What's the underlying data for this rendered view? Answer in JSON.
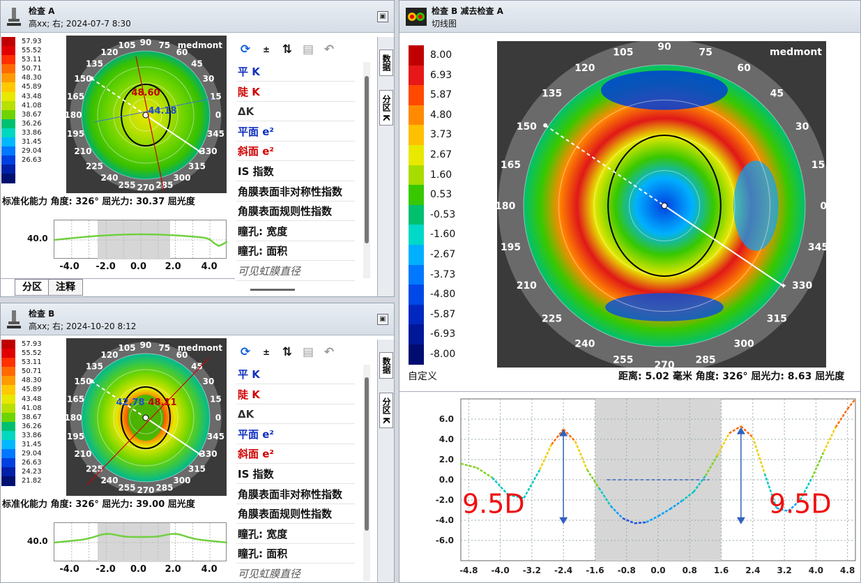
{
  "exam_a": {
    "title": "检查 A",
    "subtitle": "高xx; 右; 2024-07-7 8:30",
    "scale": [
      "57.93",
      "55.52",
      "53.11",
      "50.71",
      "48.30",
      "45.89",
      "43.48",
      "41.08",
      "38.67",
      "36.26",
      "33.86",
      "31.45",
      "29.04",
      "26.63",
      "",
      ""
    ],
    "scale_colors": [
      "#c00000",
      "#e00000",
      "#ff3000",
      "#ff6a00",
      "#ff9a00",
      "#ffc800",
      "#e8e800",
      "#b8e000",
      "#6ed400",
      "#00c070",
      "#00d8c0",
      "#00b8ff",
      "#0078ff",
      "#0040e0",
      "#0020a8",
      "#001070"
    ],
    "status": "标准化能力 角度: 326° 屈光力: 30.37 屈光度",
    "k1": "48.60",
    "k2": "44.18",
    "profile_label": "40.0",
    "profile_ticks": [
      "-4.0",
      "-2.0",
      "0.0",
      "2.0",
      "4.0"
    ],
    "bottom_tabs": [
      "分区",
      "注释"
    ],
    "vtabs": [
      "数据",
      "分区 K"
    ]
  },
  "exam_b": {
    "title": "检查 B",
    "subtitle": "高xx; 右; 2024-10-20 8:12",
    "scale": [
      "57.93",
      "55.52",
      "53.11",
      "50.71",
      "48.30",
      "45.89",
      "43.48",
      "41.08",
      "38.67",
      "36.26",
      "33.86",
      "31.45",
      "29.04",
      "26.63",
      "24.23",
      "21.82"
    ],
    "status": "标准化能力 角度: 326° 屈光力: 39.00 屈光度",
    "k1": "42.78",
    "k2": "48.11",
    "profile_label": "40.0",
    "profile_ticks": [
      "-4.0",
      "-2.0",
      "0.0",
      "2.0",
      "4.0"
    ],
    "vtabs": [
      "数据",
      "分区 K"
    ]
  },
  "angles": [
    "90",
    "105",
    "120",
    "135",
    "150",
    "165",
    "180",
    "195",
    "210",
    "225",
    "240",
    "255",
    "270",
    "285",
    "300",
    "315",
    "330",
    "345",
    "0",
    "15",
    "30",
    "45",
    "60",
    "75"
  ],
  "side_items": [
    {
      "label": "平 K",
      "color": "#1030c0"
    },
    {
      "label": "陡 K",
      "color": "#d00000"
    },
    {
      "label": "ΔK",
      "color": "#333333"
    },
    {
      "label": "平面 e²",
      "color": "#1030c0"
    },
    {
      "label": "斜面 e²",
      "color": "#d00000"
    },
    {
      "label": "IS 指数",
      "color": "#111111"
    },
    {
      "label": "角膜表面非对称性指数",
      "color": "#111111"
    },
    {
      "label": "角膜表面规则性指数",
      "color": "#111111"
    },
    {
      "label": "瞳孔: 宽度",
      "color": "#111111"
    },
    {
      "label": "瞳孔: 面积",
      "color": "#111111"
    },
    {
      "label": "可见虹膜直径",
      "color": "#555555"
    }
  ],
  "brand": "medmont",
  "diff": {
    "title": "检查 B 减去检查 A",
    "subtitle": "切线图",
    "scale": [
      "8.00",
      "6.93",
      "5.87",
      "4.80",
      "3.73",
      "2.67",
      "1.60",
      "0.53",
      "-0.53",
      "-1.60",
      "-2.67",
      "-3.73",
      "-4.80",
      "-5.87",
      "-6.93",
      "-8.00"
    ],
    "scale_colors": [
      "#c00000",
      "#e81818",
      "#ff4800",
      "#ff8a00",
      "#ffc000",
      "#e8e800",
      "#a8dc00",
      "#38c800",
      "#00c070",
      "#00d8c8",
      "#00b0ff",
      "#0078ff",
      "#0048e8",
      "#0028c0",
      "#001898",
      "#000c70"
    ],
    "custom_label": "自定义",
    "status": "距离: 5.02 毫米 角度: 326° 屈光力: 8.63 屈光度",
    "annotation_left": "9.5D",
    "annotation_right": "9.5D"
  },
  "chart_data": {
    "type": "line",
    "title": "",
    "xlabel": "",
    "ylabel": "",
    "x_ticks": [
      "-4.8",
      "-4.0",
      "-3.2",
      "-2.4",
      "-1.6",
      "-0.8",
      "0.0",
      "0.8",
      "1.6",
      "2.4",
      "3.2",
      "4.0",
      "4.8"
    ],
    "y_ticks": [
      "6.0",
      "4.0",
      "2.0",
      "0.0",
      "-2.0",
      "-4.0",
      "-6.0"
    ],
    "xlim": [
      -5.0,
      5.0
    ],
    "ylim": [
      -8.0,
      8.0
    ],
    "grid": true,
    "series": [
      {
        "x": [
          -5.0,
          -4.6,
          -4.2,
          -3.8,
          -3.4,
          -3.0,
          -2.7,
          -2.4,
          -2.1,
          -1.8,
          -1.5,
          -1.2,
          -0.9,
          -0.6,
          -0.3,
          0.0,
          0.3,
          0.6,
          0.9,
          1.2,
          1.5,
          1.8,
          2.1,
          2.4,
          2.7,
          3.0,
          3.3,
          3.6,
          3.9,
          4.2,
          4.5,
          4.8,
          5.0
        ],
        "y": [
          1.6,
          1.2,
          0.2,
          -1.5,
          -1.8,
          1.0,
          3.5,
          5.0,
          3.8,
          1.0,
          -0.8,
          -2.6,
          -3.8,
          -4.3,
          -4.2,
          -3.6,
          -2.9,
          -2.1,
          -1.2,
          0.4,
          2.4,
          4.6,
          5.3,
          4.2,
          0.6,
          -2.8,
          -3.1,
          -2.0,
          0.2,
          2.8,
          5.2,
          7.0,
          8.0
        ]
      }
    ]
  }
}
